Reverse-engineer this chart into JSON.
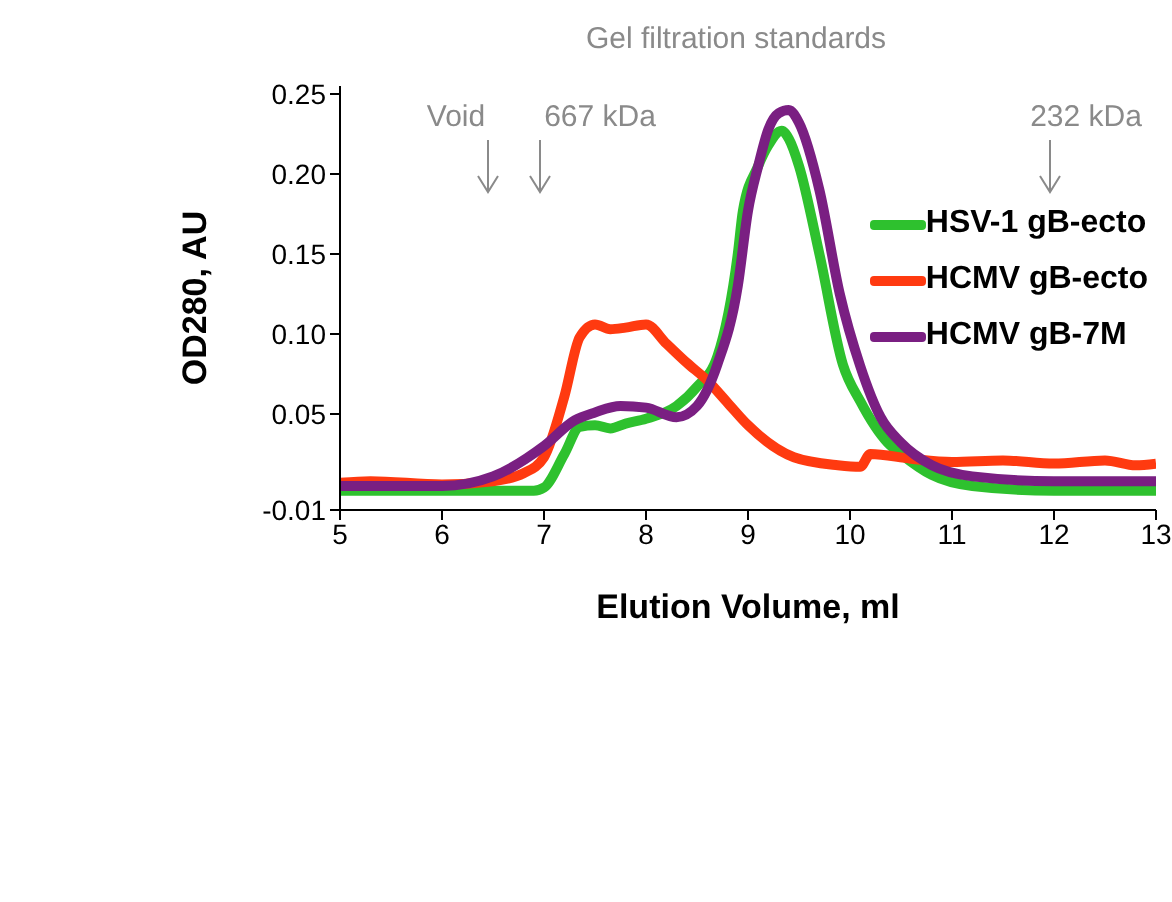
{
  "chart_data": {
    "type": "line",
    "xlabel": "Elution Volume, ml",
    "ylabel": "OD280, AU",
    "xlim": [
      5,
      13
    ],
    "xticks": [
      5,
      6,
      7,
      8,
      9,
      10,
      11,
      12,
      13
    ],
    "ylim": [
      -0.01,
      0.255
    ],
    "yticks": [
      {
        "value": -0.01,
        "label": "-0.01"
      },
      {
        "value": 0.05,
        "label": "0.05"
      },
      {
        "value": 0.1,
        "label": "0.10"
      },
      {
        "value": 0.15,
        "label": "0.15"
      },
      {
        "value": 0.2,
        "label": "0.20"
      },
      {
        "value": 0.25,
        "label": "0.25"
      }
    ],
    "grid": false,
    "legend": "top right",
    "marker": "none",
    "line_style": "solid",
    "annotations": [
      "Gel filtration standards",
      "Void",
      "667 kDa",
      "232 kDa"
    ],
    "series": [
      {
        "name": "HSV-1 gB-ecto",
        "color": "#2ec12e",
        "x": [
          5,
          6,
          6.9,
          7.0,
          7.2,
          7.35,
          7.5,
          7.65,
          7.8,
          8.0,
          8.3,
          8.5,
          8.7,
          8.9,
          8.95,
          9.1,
          9.2,
          9.33,
          9.4,
          9.5,
          9.7,
          9.93,
          10.1,
          10.37,
          10.5,
          10.8,
          11.2,
          12,
          13
        ],
        "values": [
          0.002,
          0.002,
          0.002,
          0.004,
          0.025,
          0.042,
          0.043,
          0.041,
          0.044,
          0.047,
          0.055,
          0.067,
          0.086,
          0.15,
          0.177,
          0.205,
          0.218,
          0.227,
          0.222,
          0.205,
          0.15,
          0.081,
          0.058,
          0.032,
          0.025,
          0.012,
          0.005,
          0.002,
          0.002
        ]
      },
      {
        "name": "HCMV gB-ecto",
        "color": "#ff3a10",
        "x": [
          5,
          5.3,
          6,
          6.5,
          6.8,
          7.0,
          7.2,
          7.35,
          7.5,
          7.65,
          7.8,
          8.0,
          8.2,
          8.4,
          8.6,
          8.8,
          9.0,
          9.45,
          9.88,
          10.1,
          10.2,
          10.6,
          11,
          11.5,
          12,
          12.5,
          12.8,
          13
        ],
        "values": [
          0.007,
          0.008,
          0.006,
          0.008,
          0.013,
          0.023,
          0.061,
          0.098,
          0.106,
          0.103,
          0.104,
          0.106,
          0.094,
          0.082,
          0.071,
          0.057,
          0.043,
          0.023,
          0.018,
          0.017,
          0.025,
          0.022,
          0.02,
          0.021,
          0.019,
          0.021,
          0.018,
          0.019
        ]
      },
      {
        "name": "HCMV gB-7M",
        "color": "#7a1f82",
        "x": [
          5,
          6,
          6.5,
          7.0,
          7.3,
          7.5,
          7.75,
          8.0,
          8.3,
          8.5,
          8.7,
          8.9,
          9.0,
          9.1,
          9.2,
          9.3,
          9.4,
          9.5,
          9.7,
          9.9,
          10.1,
          10.3,
          10.5,
          10.8,
          11.2,
          12,
          13
        ],
        "values": [
          0.005,
          0.005,
          0.011,
          0.03,
          0.046,
          0.051,
          0.055,
          0.054,
          0.048,
          0.055,
          0.081,
          0.13,
          0.177,
          0.205,
          0.228,
          0.238,
          0.24,
          0.232,
          0.19,
          0.125,
          0.08,
          0.048,
          0.032,
          0.018,
          0.011,
          0.008,
          0.008
        ]
      }
    ]
  }
}
